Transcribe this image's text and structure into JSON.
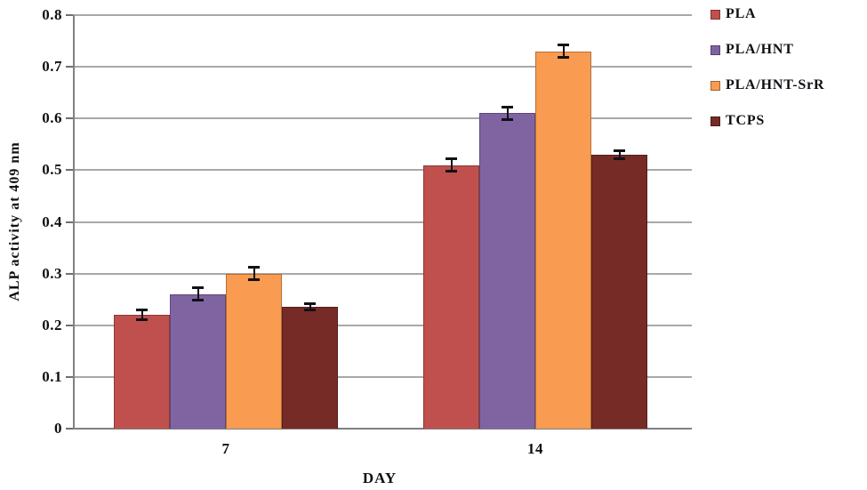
{
  "chart_data": {
    "type": "bar",
    "title": "",
    "xlabel": "DAY",
    "ylabel": "ALP activity at 409 nm",
    "categories": [
      "7",
      "14"
    ],
    "series": [
      {
        "name": "PLA",
        "color": "#C0504D",
        "values": [
          0.22,
          0.51
        ],
        "errors": [
          0.01,
          0.012
        ]
      },
      {
        "name": "PLA/HNT",
        "color": "#8064A2",
        "values": [
          0.26,
          0.61
        ],
        "errors": [
          0.012,
          0.012
        ]
      },
      {
        "name": "PLA/HNT-SrR",
        "color": "#F99B50",
        "values": [
          0.3,
          0.73
        ],
        "errors": [
          0.012,
          0.012
        ]
      },
      {
        "name": "TCPS",
        "color": "#762B27",
        "values": [
          0.235,
          0.53
        ],
        "errors": [
          0.006,
          0.007
        ]
      }
    ],
    "ylim": [
      0,
      0.8
    ],
    "ytick_values": [
      0,
      0.1,
      0.2,
      0.3,
      0.4,
      0.5,
      0.6,
      0.7,
      0.8
    ],
    "ytick_labels": [
      "0",
      "0.1",
      "0.2",
      "0.3",
      "0.4",
      "0.5",
      "0.6",
      "0.7",
      "0.8"
    ],
    "grid": true,
    "legend_position": "right",
    "error_bar_color": "#111118",
    "grid_color": "#a8a8a8",
    "axis_color": "#808080"
  }
}
